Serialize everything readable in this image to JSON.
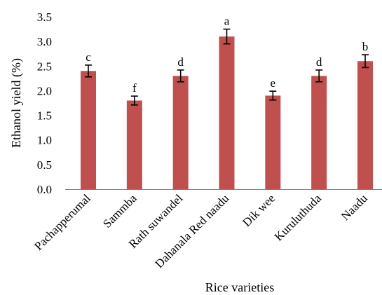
{
  "chart_data": {
    "type": "bar",
    "title": "",
    "xlabel": "Rice varieties",
    "ylabel": "Ethanol yield (%)",
    "categories": [
      "Pachapperumal",
      "Sammba",
      "Rath suwandel",
      "Dahanala Red naadu",
      "Dik wee",
      "Kuruluthuda",
      "Naadu"
    ],
    "values": [
      2.4,
      1.8,
      2.3,
      3.1,
      1.9,
      2.3,
      2.6
    ],
    "error": [
      0.12,
      0.09,
      0.12,
      0.15,
      0.09,
      0.12,
      0.13
    ],
    "letters": [
      "c",
      "f",
      "d",
      "a",
      "e",
      "d",
      "b"
    ],
    "ylim": [
      0,
      3.5
    ],
    "yticks": [
      "0.0",
      "0.5",
      "1.0",
      "1.5",
      "2.0",
      "2.5",
      "3.0",
      "3.5"
    ],
    "bar_color": "#c0504d",
    "grid": false,
    "legend": "none"
  }
}
